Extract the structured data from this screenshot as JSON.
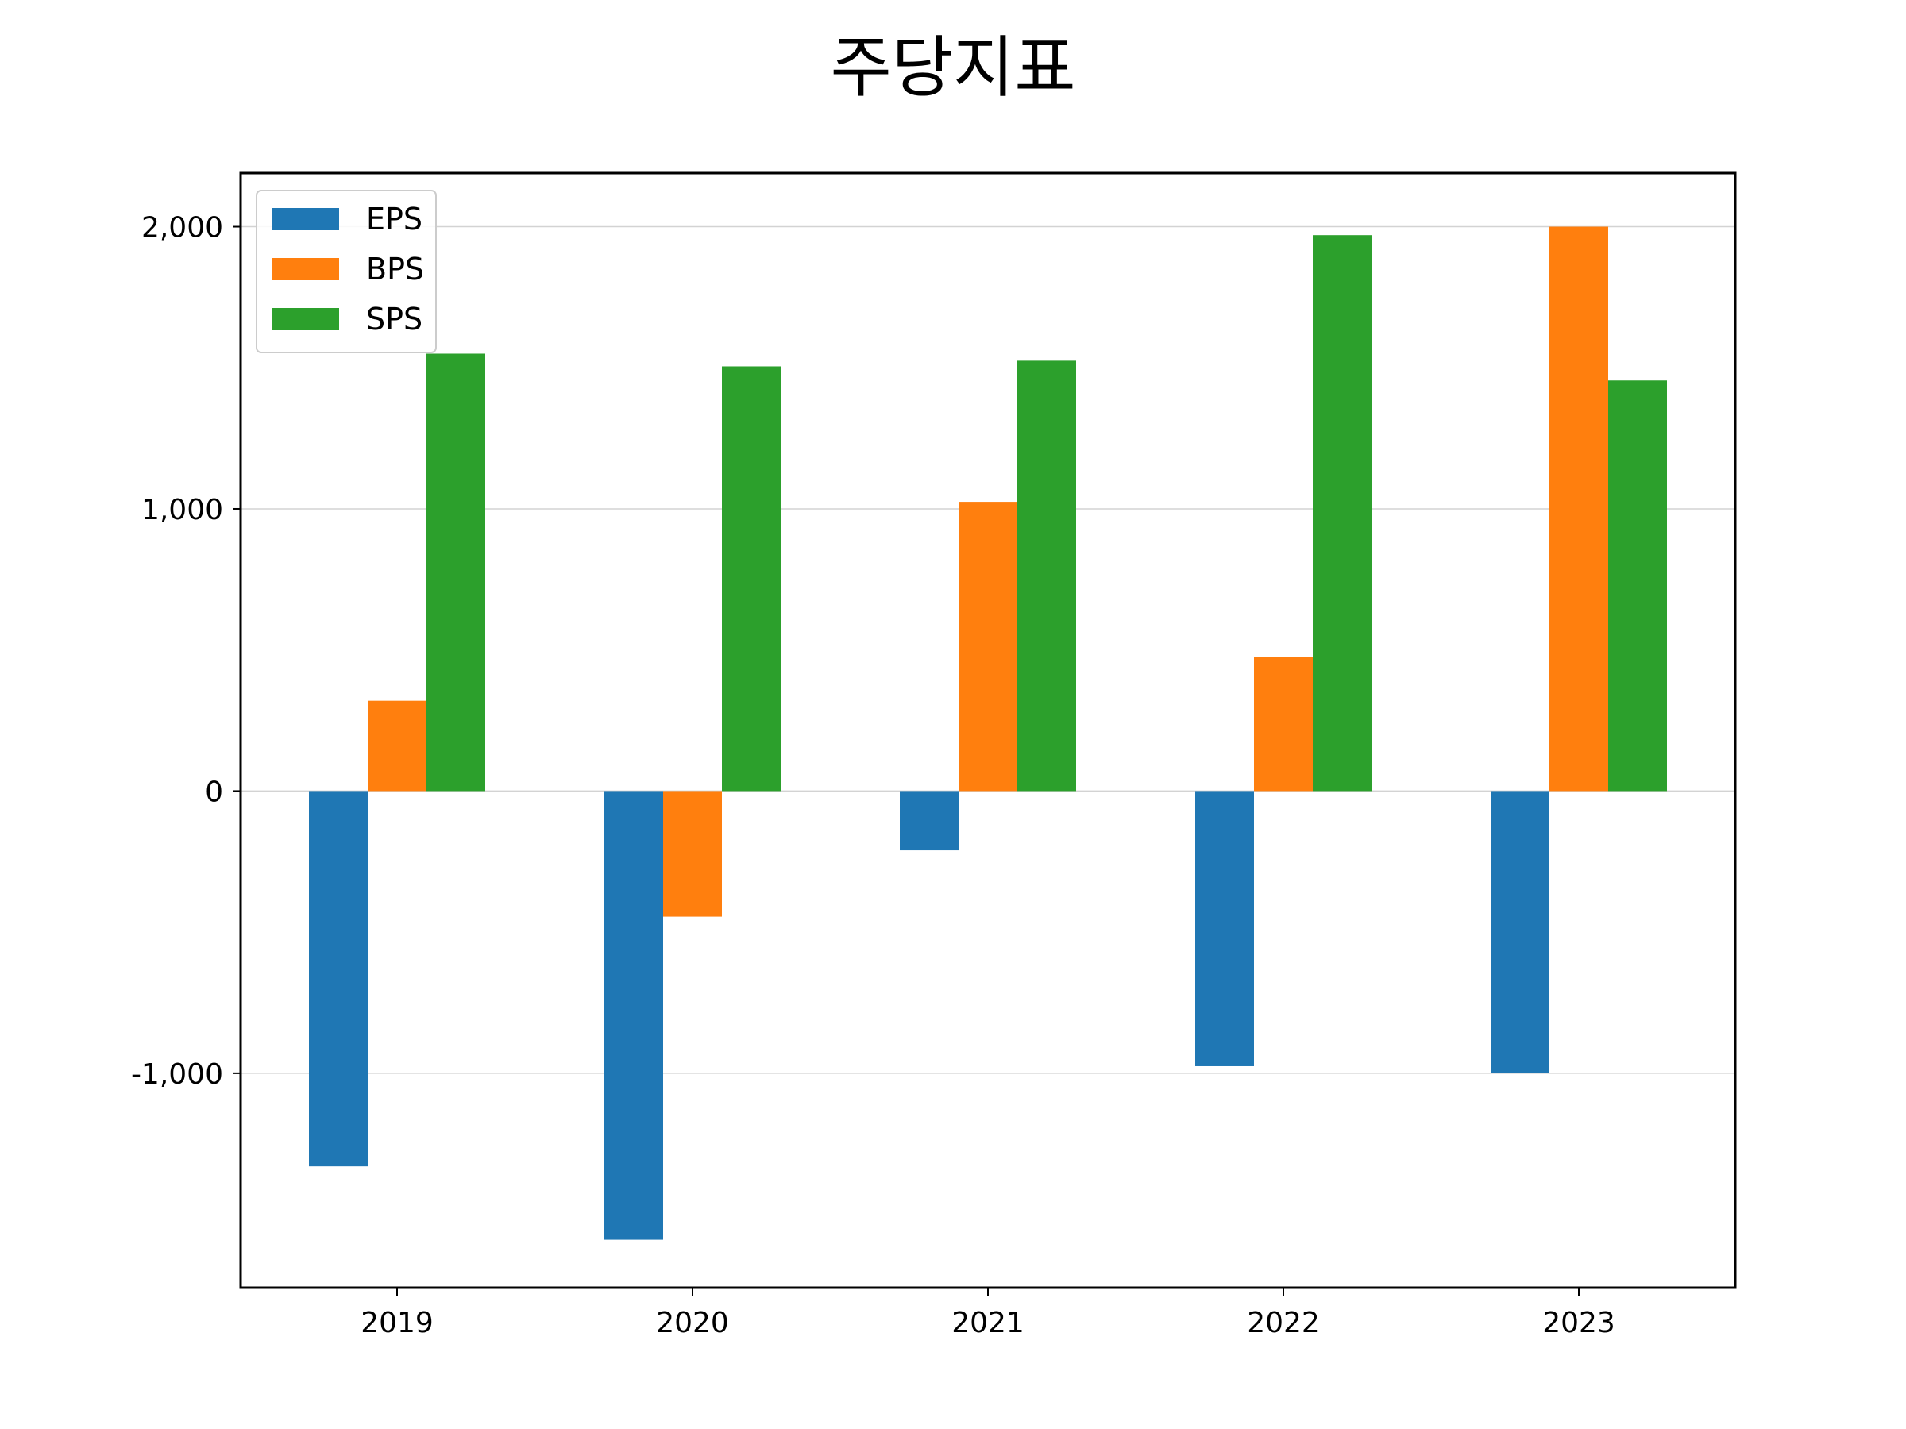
{
  "chart_data": {
    "type": "bar",
    "title": "주당지표",
    "xlabel": "",
    "ylabel": "",
    "categories": [
      "2019",
      "2020",
      "2021",
      "2022",
      "2023"
    ],
    "series": [
      {
        "name": "EPS",
        "color": "#1f77b4",
        "values": [
          -1330,
          -1590,
          -210,
          -975,
          -1000
        ]
      },
      {
        "name": "BPS",
        "color": "#ff7f0e",
        "values": [
          320,
          -445,
          1025,
          475,
          2000
        ]
      },
      {
        "name": "SPS",
        "color": "#2ca02c",
        "values": [
          1550,
          1505,
          1525,
          1970,
          1455
        ]
      }
    ],
    "ylim": [
      -1760,
      2190
    ],
    "yticks": [
      {
        "value": -1000,
        "label": "-1,000"
      },
      {
        "value": 0,
        "label": "0"
      },
      {
        "value": 1000,
        "label": "1,000"
      },
      {
        "value": 2000,
        "label": "2,000"
      }
    ],
    "grid": "horizontal",
    "legend_position": "top-left"
  }
}
